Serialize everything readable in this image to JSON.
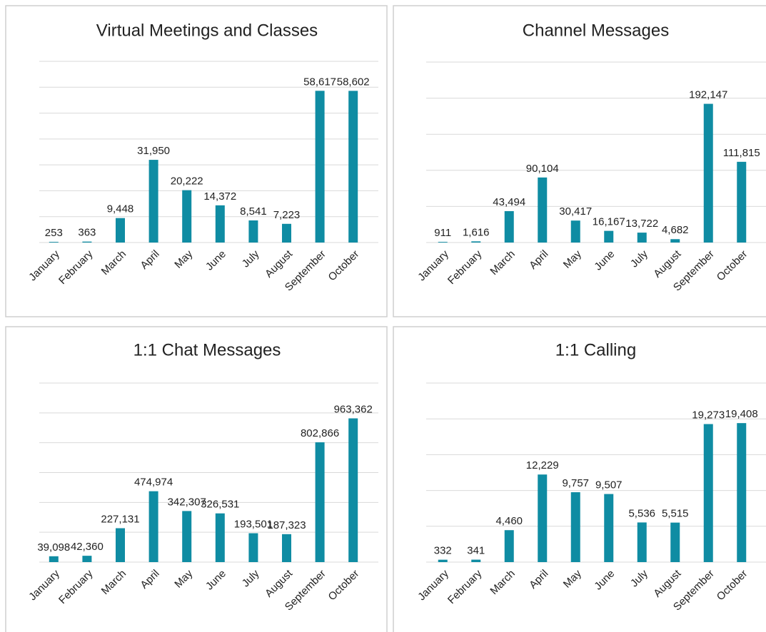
{
  "chart_data": [
    {
      "type": "bar",
      "title": "Virtual Meetings and Classes",
      "color": "#0f8ca3",
      "categories": [
        "January",
        "February",
        "March",
        "April",
        "May",
        "June",
        "July",
        "August",
        "September",
        "October"
      ],
      "values": [
        253,
        363,
        9448,
        31950,
        20222,
        14372,
        8541,
        7223,
        58617,
        58602
      ],
      "value_labels": [
        "253",
        "363",
        "9,448",
        "31,950",
        "20,222",
        "14,372",
        "8,541",
        "7,223",
        "58,617",
        "58,602"
      ],
      "ylim": [
        0,
        70000
      ],
      "yticks": [
        0,
        10000,
        20000,
        30000,
        40000,
        50000,
        60000,
        70000
      ],
      "grid": true
    },
    {
      "type": "bar",
      "title": "Channel Messages",
      "color": "#0f8ca3",
      "categories": [
        "January",
        "February",
        "March",
        "April",
        "May",
        "June",
        "July",
        "August",
        "September",
        "October"
      ],
      "values": [
        911,
        1616,
        43494,
        90104,
        30417,
        16167,
        13722,
        4682,
        192147,
        111815
      ],
      "value_labels": [
        "911",
        "1,616",
        "43,494",
        "90,104",
        "30,417",
        "16,167",
        "13,722",
        "4,682",
        "192,147",
        "111,815"
      ],
      "ylim": [
        0,
        250000
      ],
      "yticks": [
        0,
        50000,
        100000,
        150000,
        200000,
        250000
      ],
      "grid": true
    },
    {
      "type": "bar",
      "title": "1:1 Chat Messages",
      "color": "#0f8ca3",
      "categories": [
        "January",
        "February",
        "March",
        "April",
        "May",
        "June",
        "July",
        "August",
        "September",
        "October"
      ],
      "values": [
        39098,
        42360,
        227131,
        474974,
        342307,
        326531,
        193501,
        187323,
        802866,
        963362
      ],
      "value_labels": [
        "39,098",
        "42,360",
        "227,131",
        "474,974",
        "342,307",
        "326,531",
        "193,501",
        "187,323",
        "802,866",
        "963,362"
      ],
      "ylim": [
        0,
        1200000
      ],
      "yticks": [
        0,
        200000,
        400000,
        600000,
        800000,
        1000000,
        1200000
      ],
      "grid": true
    },
    {
      "type": "bar",
      "title": "1:1 Calling",
      "color": "#0f8ca3",
      "categories": [
        "January",
        "February",
        "March",
        "April",
        "May",
        "June",
        "July",
        "August",
        "September",
        "October"
      ],
      "values": [
        332,
        341,
        4460,
        12229,
        9757,
        9507,
        5536,
        5515,
        19273,
        19408
      ],
      "value_labels": [
        "332",
        "341",
        "4,460",
        "12,229",
        "9,757",
        "9,507",
        "5,536",
        "5,515",
        "19,273",
        "19,408"
      ],
      "ylim": [
        0,
        25000
      ],
      "yticks": [
        0,
        5000,
        10000,
        15000,
        20000,
        25000
      ],
      "grid": true
    }
  ]
}
